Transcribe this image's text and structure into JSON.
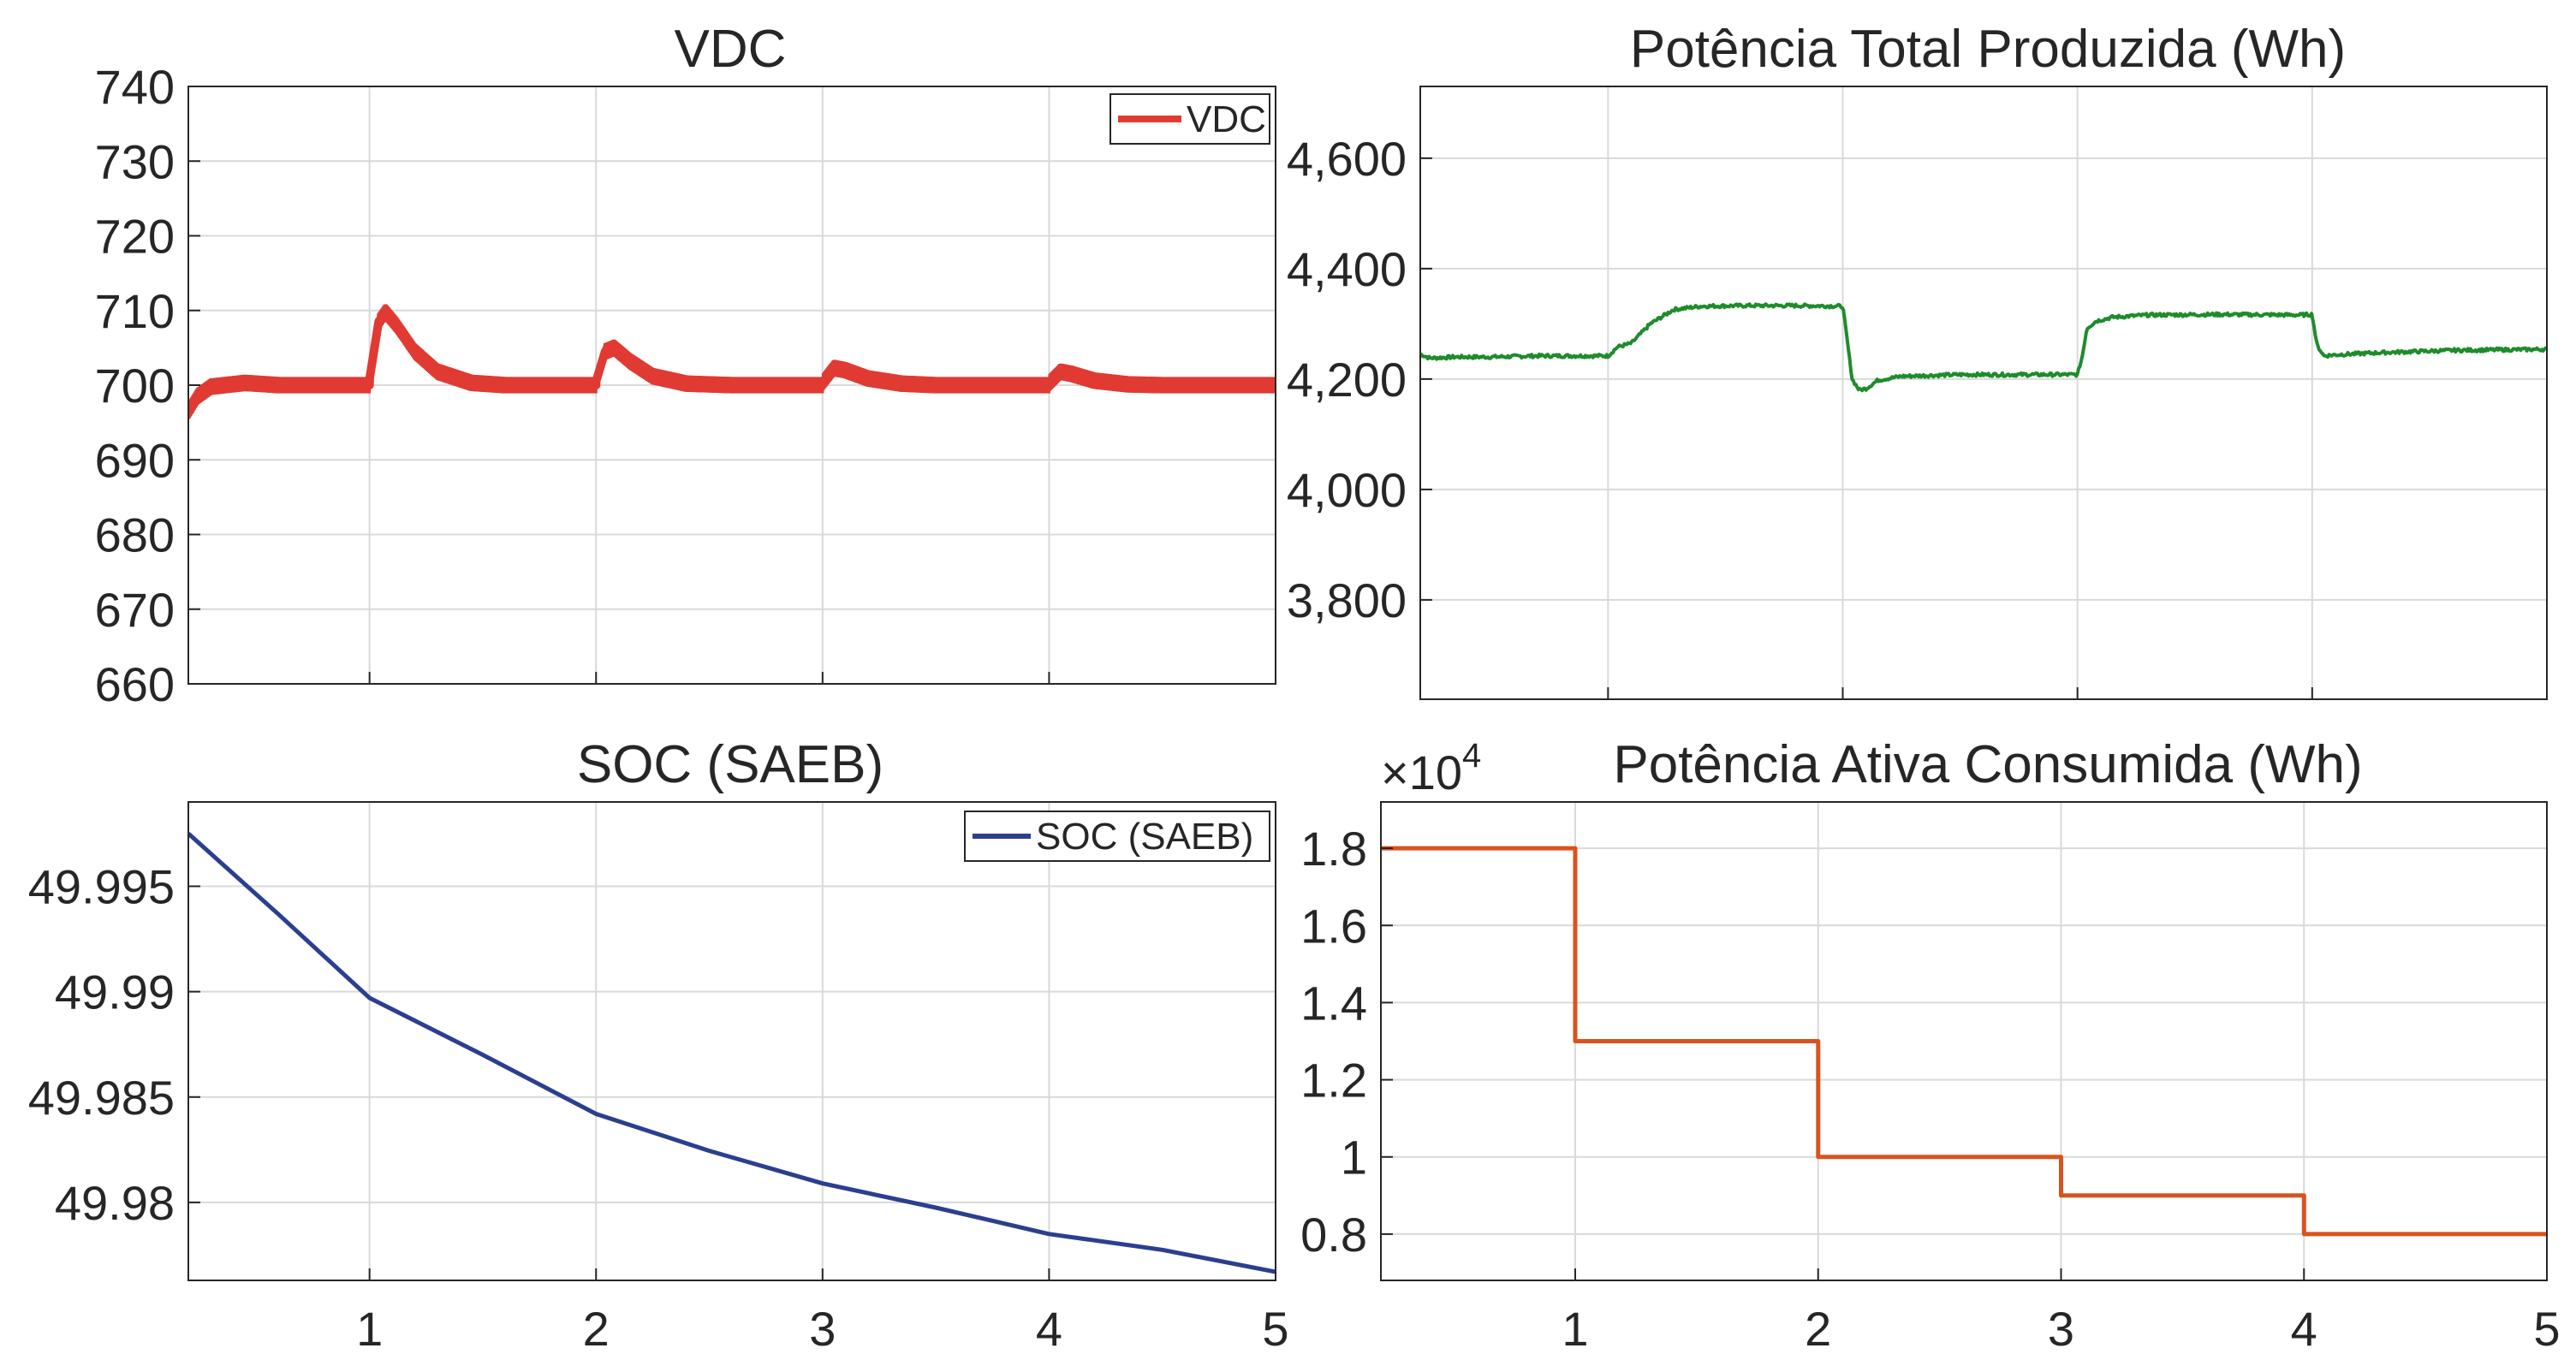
{
  "chart_data": [
    {
      "id": "vdc",
      "type": "line",
      "title": "VDC",
      "xlabel": "",
      "ylabel": "",
      "xlim": [
        0.2,
        5
      ],
      "ylim": [
        660,
        740
      ],
      "yticks": [
        660,
        670,
        680,
        690,
        700,
        710,
        720,
        730,
        740
      ],
      "ytick_labels": [
        "660",
        "670",
        "680",
        "690",
        "700",
        "710",
        "720",
        "730",
        "740"
      ],
      "xticks": [
        1,
        2,
        3,
        4,
        5
      ],
      "xtick_labels": [],
      "grid": true,
      "legend": {
        "location": "top-right",
        "entries": [
          "VDC"
        ]
      },
      "series": [
        {
          "name": "VDC",
          "color": "#e03a33",
          "ripple": 2.2,
          "x": [
            0.2,
            0.24,
            0.3,
            0.45,
            0.6,
            1.0,
            1.001,
            1.04,
            1.07,
            1.12,
            1.2,
            1.3,
            1.45,
            1.6,
            2.0,
            2.001,
            2.04,
            2.08,
            2.15,
            2.25,
            2.4,
            2.6,
            3.0,
            3.001,
            3.05,
            3.1,
            3.2,
            3.35,
            3.5,
            4.0,
            4.001,
            4.05,
            4.1,
            4.2,
            4.35,
            4.5,
            5.0
          ],
          "y": [
            696.5,
            698.5,
            699.8,
            700.3,
            700.0,
            700.0,
            701.0,
            708.5,
            709.8,
            708.0,
            704.5,
            701.8,
            700.3,
            700.0,
            700.0,
            700.6,
            704.5,
            705.0,
            703.2,
            701.2,
            700.2,
            700.0,
            700.0,
            700.4,
            702.3,
            702.0,
            700.9,
            700.2,
            700.0,
            700.0,
            700.3,
            701.8,
            701.5,
            700.6,
            700.1,
            700.0,
            700.0
          ]
        }
      ]
    },
    {
      "id": "ptotal",
      "type": "line",
      "title": "Potência Total Produzida (Wh)",
      "xlabel": "",
      "ylabel": "",
      "xlim": [
        0.2,
        5
      ],
      "ylim": [
        3620,
        4730
      ],
      "yticks": [
        3800,
        4000,
        4200,
        4400,
        4600
      ],
      "ytick_labels": [
        "3,800",
        "4,000",
        "4,200",
        "4,400",
        "4,600"
      ],
      "xticks": [
        1,
        2,
        3,
        4,
        5
      ],
      "xtick_labels": [],
      "grid": true,
      "series": [
        {
          "name": "Potência Total Produzida",
          "color": "#1e8c2c",
          "noise": 3,
          "x": [
            0.2,
            0.24,
            0.35,
            0.5,
            0.7,
            1.0,
            1.04,
            1.1,
            1.18,
            1.28,
            1.4,
            1.6,
            1.8,
            2.0,
            2.01,
            2.04,
            2.07,
            2.1,
            2.15,
            2.25,
            2.5,
            3.0,
            3.02,
            3.04,
            3.08,
            3.15,
            3.3,
            3.6,
            3.95,
            4.0,
            4.02,
            4.05,
            4.1,
            4.3,
            4.6,
            5.0
          ],
          "y": [
            4245,
            4238,
            4240,
            4240,
            4242,
            4242,
            4258,
            4265,
            4300,
            4326,
            4332,
            4333,
            4333,
            4332,
            4300,
            4200,
            4180,
            4183,
            4198,
            4205,
            4208,
            4208,
            4240,
            4292,
            4305,
            4312,
            4316,
            4317,
            4316,
            4317,
            4262,
            4242,
            4244,
            4248,
            4252,
            4254
          ]
        }
      ]
    },
    {
      "id": "soc",
      "type": "line",
      "title": "SOC (SAEB)",
      "xlabel": "",
      "ylabel": "",
      "xlim": [
        0.2,
        5
      ],
      "ylim": [
        49.9763,
        49.999
      ],
      "yticks": [
        49.98,
        49.985,
        49.99,
        49.995
      ],
      "ytick_labels": [
        "49.98",
        "49.985",
        "49.99",
        "49.995"
      ],
      "xticks": [
        1,
        2,
        3,
        4,
        5
      ],
      "xtick_labels": [
        "1",
        "2",
        "3",
        "4",
        "5"
      ],
      "grid": true,
      "legend": {
        "location": "top-right",
        "entries": [
          "SOC (SAEB)"
        ]
      },
      "series": [
        {
          "name": "SOC (SAEB)",
          "color": "#2b3f8f",
          "x": [
            0.2,
            0.6,
            1.0,
            1.5,
            2.0,
            2.5,
            3.0,
            3.5,
            4.0,
            4.5,
            5.0
          ],
          "y": [
            49.9975,
            49.99365,
            49.9897,
            49.987,
            49.9842,
            49.98245,
            49.9809,
            49.97975,
            49.9785,
            49.97775,
            49.9767
          ]
        }
      ]
    },
    {
      "id": "pativa",
      "type": "line",
      "title": "Potência Ativa Consumida (Wh)",
      "xlabel": "",
      "ylabel": "",
      "multiplier": "×10",
      "multiplier_exp": "4",
      "xlim": [
        0.2,
        5
      ],
      "ylim": [
        0.68,
        1.92
      ],
      "yticks": [
        0.8,
        1.0,
        1.2,
        1.4,
        1.6,
        1.8
      ],
      "ytick_labels": [
        "0.8",
        "1",
        "1.2",
        "1.4",
        "1.6",
        "1.8"
      ],
      "xticks": [
        1,
        2,
        3,
        4,
        5
      ],
      "xtick_labels": [
        "1",
        "2",
        "3",
        "4",
        "5"
      ],
      "grid": true,
      "series": [
        {
          "name": "Potência Ativa Consumida",
          "color": "#d9531e",
          "x": [
            0.2,
            1.0,
            1.0,
            2.0,
            2.0,
            3.0,
            3.0,
            4.0,
            4.0,
            5.0
          ],
          "y": [
            1.8,
            1.8,
            1.3,
            1.3,
            1.0,
            1.0,
            0.9,
            0.9,
            0.8,
            0.8
          ]
        }
      ]
    }
  ]
}
